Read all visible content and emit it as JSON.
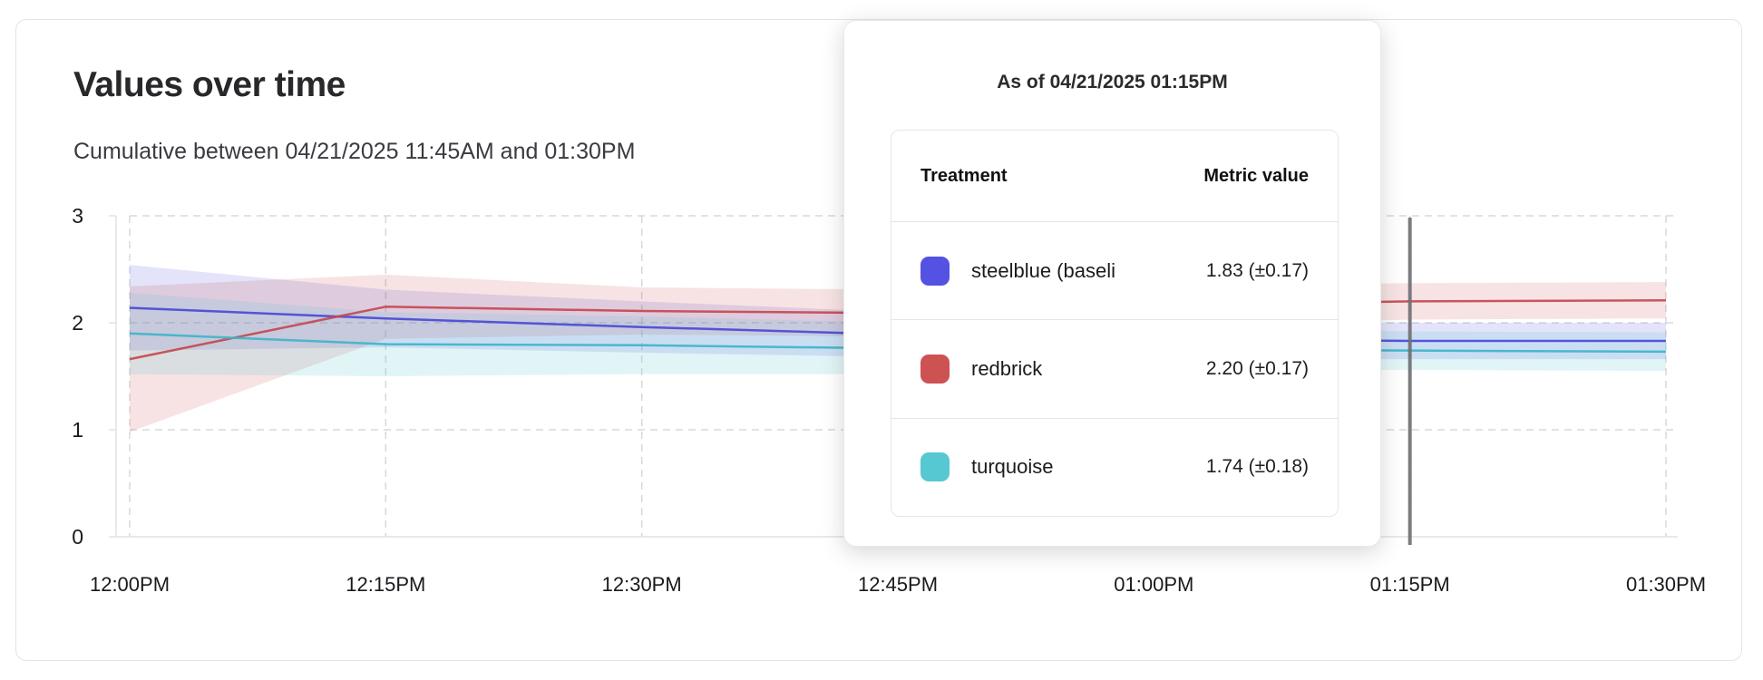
{
  "header": {
    "title": "Values over time",
    "subtitle": "Cumulative between 04/21/2025 11:45AM and 01:30PM"
  },
  "tooltip": {
    "title": "As of 04/21/2025 01:15PM",
    "columns": {
      "treatment": "Treatment",
      "metric_value": "Metric value"
    },
    "rows": [
      {
        "label": "steelblue  (baseli",
        "value": "1.83 (±0.17)",
        "swatch_color": "#5352e3"
      },
      {
        "label": "redbrick",
        "value": "2.20 (±0.17)",
        "swatch_color": "#cd5252"
      },
      {
        "label": "turquoise",
        "value": "1.74 (±0.18)",
        "swatch_color": "#56c8d2"
      }
    ]
  },
  "chart_data": {
    "type": "line",
    "title": "Values over time",
    "subtitle": "Cumulative between 04/21/2025 11:45AM and 01:30PM",
    "x_tick_labels": [
      "12:00PM",
      "12:15PM",
      "12:30PM",
      "12:45PM",
      "01:00PM",
      "01:15PM",
      "01:30PM"
    ],
    "y_tick_labels": [
      "0",
      "1",
      "2",
      "3"
    ],
    "ylim": [
      0,
      3
    ],
    "grid": true,
    "legend_position": "tooltip",
    "hover_marker": {
      "x_label": "01:15PM",
      "color": "#6f6f73"
    },
    "axis_color": "#e2e2e6",
    "gridline_color": "#d8d8dc",
    "series": [
      {
        "name": "steelblue (baseline)",
        "line_color": "#4a49d8",
        "band_color": "#5352e3",
        "band_opacity": 0.16,
        "values": [
          2.14,
          2.04,
          1.96,
          1.89,
          1.85,
          1.83,
          1.83
        ],
        "ci_half_width": [
          0.4,
          0.27,
          0.24,
          0.21,
          0.19,
          0.17,
          0.17
        ]
      },
      {
        "name": "redbrick",
        "line_color": "#c4494f",
        "band_color": "#cd5252",
        "band_opacity": 0.16,
        "values": [
          1.66,
          2.15,
          2.11,
          2.09,
          2.16,
          2.2,
          2.21
        ],
        "ci_half_width": [
          0.68,
          0.3,
          0.22,
          0.22,
          0.19,
          0.17,
          0.17
        ]
      },
      {
        "name": "turquoise",
        "line_color": "#3fb4c8",
        "band_color": "#56c8d2",
        "band_opacity": 0.18,
        "values": [
          1.9,
          1.8,
          1.79,
          1.76,
          1.75,
          1.74,
          1.73
        ],
        "ci_half_width": [
          0.38,
          0.3,
          0.27,
          0.24,
          0.21,
          0.18,
          0.18
        ]
      }
    ]
  }
}
